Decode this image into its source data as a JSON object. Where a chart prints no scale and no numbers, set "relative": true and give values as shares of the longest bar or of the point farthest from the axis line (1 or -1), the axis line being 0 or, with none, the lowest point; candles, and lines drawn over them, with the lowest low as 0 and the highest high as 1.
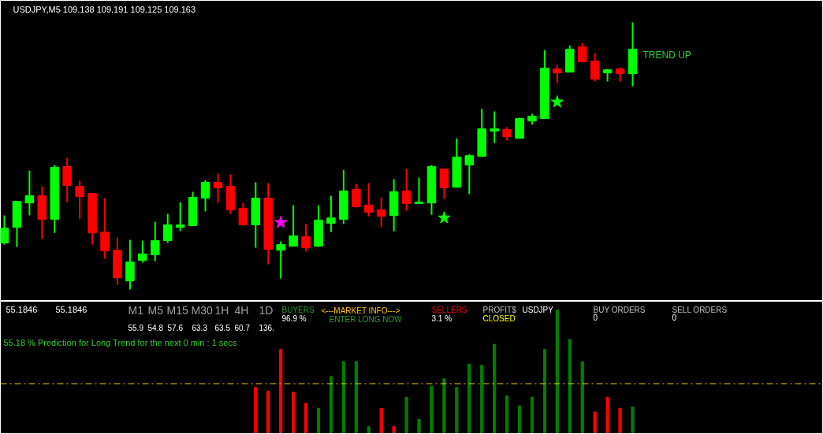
{
  "chart_data": [
    {
      "type": "candlestick",
      "title": "USDJPY,M5  109.138 109.191 109.125 109.163",
      "relative": true,
      "grid": false,
      "marker": "star",
      "categories": [
        null,
        null,
        null,
        null,
        null,
        null,
        null,
        null,
        null,
        null,
        null,
        null,
        null,
        null,
        null,
        null,
        null,
        null,
        null,
        null,
        null,
        null,
        null,
        null,
        null,
        null,
        null,
        null,
        null,
        null,
        null,
        null,
        null,
        null,
        null,
        null,
        null,
        null,
        null,
        null,
        null,
        null,
        null,
        null,
        null,
        null,
        null,
        null,
        null,
        null,
        null
      ],
      "ohlc": [
        [
          0.174,
          0.277,
          0.168,
          0.23
        ],
        [
          0.233,
          0.33,
          0.159,
          0.33
        ],
        [
          0.324,
          0.445,
          0.277,
          0.351
        ],
        [
          0.351,
          0.386,
          0.189,
          0.263
        ],
        [
          0.263,
          0.466,
          0.212,
          0.457
        ],
        [
          0.46,
          0.493,
          0.327,
          0.389
        ],
        [
          0.386,
          0.407,
          0.263,
          0.348
        ],
        [
          0.36,
          0.36,
          0.168,
          0.212
        ],
        [
          0.215,
          0.342,
          0.115,
          0.145
        ],
        [
          0.147,
          0.195,
          0.018,
          0.044
        ],
        [
          0.032,
          0.186,
          0.0,
          0.103
        ],
        [
          0.109,
          0.183,
          0.1,
          0.133
        ],
        [
          0.13,
          0.254,
          0.106,
          0.183
        ],
        [
          0.183,
          0.283,
          0.174,
          0.242
        ],
        [
          0.233,
          0.327,
          0.218,
          0.242
        ],
        [
          0.239,
          0.366,
          0.239,
          0.345
        ],
        [
          0.342,
          0.41,
          0.292,
          0.401
        ],
        [
          0.401,
          0.434,
          0.324,
          0.381
        ],
        [
          0.386,
          0.431,
          0.283,
          0.298
        ],
        [
          0.304,
          0.324,
          0.239,
          0.242
        ],
        [
          0.242,
          0.401,
          0.156,
          0.342
        ],
        [
          0.342,
          0.398,
          0.094,
          0.15
        ],
        [
          0.147,
          0.18,
          0.041,
          0.168
        ],
        [
          0.162,
          0.316,
          0.162,
          0.201
        ],
        [
          0.198,
          0.245,
          0.142,
          0.156
        ],
        [
          0.162,
          0.316,
          0.159,
          0.26
        ],
        [
          0.248,
          0.351,
          0.215,
          0.268
        ],
        [
          0.263,
          0.448,
          0.245,
          0.369
        ],
        [
          0.375,
          0.395,
          0.307,
          0.31
        ],
        [
          0.316,
          0.398,
          0.274,
          0.289
        ],
        [
          0.298,
          0.345,
          0.233,
          0.274
        ],
        [
          0.277,
          0.413,
          0.218,
          0.366
        ],
        [
          0.369,
          0.451,
          0.295,
          0.322
        ],
        [
          0.322,
          0.419,
          0.322,
          0.327
        ],
        [
          0.324,
          0.466,
          0.28,
          0.46
        ],
        [
          0.451,
          0.451,
          0.339,
          0.381
        ],
        [
          0.383,
          0.566,
          0.381,
          0.496
        ],
        [
          0.466,
          0.507,
          0.357,
          0.501
        ],
        [
          0.499,
          0.676,
          0.496,
          0.602
        ],
        [
          0.593,
          0.667,
          0.549,
          0.602
        ],
        [
          0.599,
          0.608,
          0.558,
          0.572
        ],
        [
          0.566,
          0.643,
          0.566,
          0.64
        ],
        [
          0.631,
          0.658,
          0.617,
          0.649
        ],
        [
          0.64,
          0.897,
          0.64,
          0.829
        ],
        [
          0.826,
          0.841,
          0.773,
          0.811
        ],
        [
          0.814,
          0.914,
          0.814,
          0.9
        ],
        [
          0.909,
          0.923,
          0.853,
          0.853
        ],
        [
          0.855,
          0.885,
          0.779,
          0.788
        ],
        [
          0.811,
          0.826,
          0.779,
          0.823
        ],
        [
          0.826,
          0.832,
          0.779,
          0.808
        ],
        [
          0.808,
          1.0,
          0.761,
          0.9
        ]
      ],
      "colors": [
        "#00ff00",
        "#00ff00",
        "#00ff00",
        "#ff0000",
        "#00ff00",
        "#ff0000",
        "#ff0000",
        "#ff0000",
        "#ff0000",
        "#ff0000",
        "#00ff00",
        "#00ff00",
        "#00ff00",
        "#00ff00",
        "#00ff00",
        "#00ff00",
        "#00ff00",
        "#ff0000",
        "#ff0000",
        "#ff0000",
        "#00ff00",
        "#ff0000",
        "#00ff00",
        "#00ff00",
        "#ff0000",
        "#00ff00",
        "#00ff00",
        "#00ff00",
        "#ff0000",
        "#ff0000",
        "#ff0000",
        "#00ff00",
        "#ff0000",
        "#00ff00",
        "#00ff00",
        "#ff0000",
        "#00ff00",
        "#00ff00",
        "#00ff00",
        "#00ff00",
        "#ff0000",
        "#00ff00",
        "#00ff00",
        "#00ff00",
        "#ff0000",
        "#00ff00",
        "#ff0000",
        "#ff0000",
        "#00ff00",
        "#ff0000",
        "#00ff00"
      ],
      "series": [
        {
          "type": "scatter",
          "color": "#ff00ff",
          "values": [
            null,
            null,
            null,
            null,
            null,
            null,
            null,
            null,
            null,
            null,
            null,
            null,
            null,
            null,
            null,
            null,
            null,
            null,
            null,
            null,
            null,
            null,
            0.251,
            null,
            null,
            null,
            null,
            null,
            null,
            null,
            null,
            null,
            null,
            null,
            null,
            null,
            null,
            null,
            null,
            null,
            null,
            null,
            null,
            null,
            null,
            null,
            null,
            null,
            null,
            null,
            null
          ]
        },
        {
          "type": "scatter",
          "color": "#00ff00",
          "values": [
            null,
            null,
            null,
            null,
            null,
            null,
            null,
            null,
            null,
            null,
            null,
            null,
            null,
            null,
            null,
            null,
            null,
            null,
            null,
            null,
            null,
            null,
            null,
            null,
            null,
            null,
            null,
            null,
            null,
            null,
            null,
            null,
            null,
            null,
            null,
            0.268,
            null,
            null,
            null,
            null,
            null,
            null,
            null,
            null,
            0.702,
            null,
            null,
            null,
            null,
            null,
            null
          ]
        }
      ],
      "annotations": [
        "TREND UP"
      ]
    },
    {
      "type": "bar",
      "relative": true,
      "grid": false,
      "categories": [
        null,
        null,
        null,
        null,
        null,
        null,
        null,
        null,
        null,
        null,
        null,
        null,
        null,
        null,
        null,
        null,
        null,
        null,
        null,
        null,
        null,
        null,
        null,
        null,
        null,
        null,
        null,
        null,
        null,
        null,
        null,
        null,
        null,
        null,
        null,
        null,
        null,
        null,
        null,
        null,
        null,
        null,
        null,
        null,
        null,
        null,
        null,
        null,
        null,
        null,
        null
      ],
      "values": [
        null,
        null,
        null,
        null,
        null,
        null,
        null,
        null,
        null,
        null,
        null,
        null,
        null,
        null,
        null,
        null,
        null,
        null,
        null,
        null,
        0.37,
        0.34,
        0.68,
        0.33,
        0.24,
        0.2,
        0.46,
        0.58,
        0.58,
        0.05,
        0.2,
        0.05,
        0.29,
        0.11,
        0.38,
        0.44,
        0.37,
        0.56,
        0.55,
        0.72,
        0.3,
        0.22,
        0.29,
        0.68,
        1.0,
        0.76,
        0.58,
        0.17,
        0.29,
        0.2,
        0.21
      ],
      "colors": [
        "#ff0000",
        "#ff0000",
        "#ff0000",
        "#ff0000",
        "#ff0000",
        "#ff0000",
        "#ff0000",
        "#ff0000",
        "#ff0000",
        "#ff0000",
        "#ff0000",
        "#ff0000",
        "#ff0000",
        "#ff0000",
        "#ff0000",
        "#ff0000",
        "#ff0000",
        "#ff0000",
        "#ff0000",
        "#ff0000",
        "#ff0000",
        "#ff0000",
        "#ff0000",
        "#ff0000",
        "#ff0000",
        "#008000",
        "#008000",
        "#008000",
        "#008000",
        "#008000",
        "#ff0000",
        "#ff0000",
        "#008000",
        "#008000",
        "#008000",
        "#008000",
        "#008000",
        "#008000",
        "#008000",
        "#008000",
        "#008000",
        "#008000",
        "#008000",
        "#008000",
        "#008000",
        "#008000",
        "#008000",
        "#ff0000",
        "#ff0000",
        "#ff0000",
        "#008000"
      ],
      "ref_lines": [
        {
          "axis": "y",
          "value": 0.4,
          "color": "#ffd700",
          "line_style": "dashed"
        }
      ],
      "annotations": [
        "55.1846",
        "55.1846",
        "M1",
        "M5",
        "M15",
        "M30",
        "1H",
        "4H",
        "1D",
        "55.9",
        "54.8",
        "57.6",
        "63.3",
        "63.5",
        "60.7",
        "136.",
        "BUYERS",
        "96.9 %",
        "<---MARKET INFO--->",
        "ENTER LONG NOW",
        "SELLERS",
        "3.1 %",
        "PROFIT$",
        "CLOSED",
        "USDJPY",
        "BUY ORDERS",
        "0",
        "SELL ORDERS",
        "0",
        "55.18 % Prediction for Long Trend for the next 0 min : 1 secs"
      ]
    }
  ]
}
